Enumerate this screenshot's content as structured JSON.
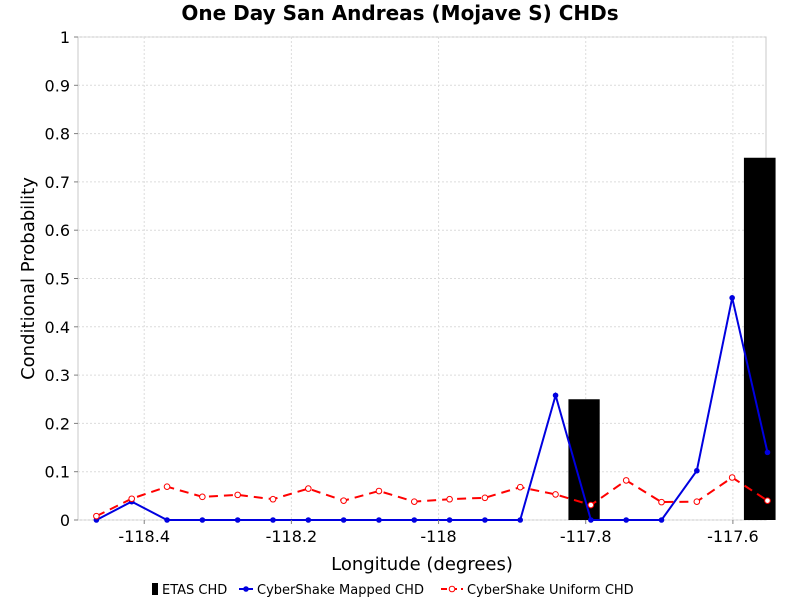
{
  "chart_data": {
    "type": "bar+line",
    "title": "One Day San Andreas (Mojave S) CHDs",
    "xlabel": "Longitude (degrees)",
    "ylabel": "Conditional Probability",
    "xlim": [
      -118.49,
      -117.555
    ],
    "ylim": [
      0,
      1
    ],
    "xticks": [
      -118.4,
      -118.2,
      -118,
      -117.8,
      -117.6
    ],
    "xtick_labels": [
      "-118.4",
      "-118.2",
      "-118",
      "-117.8",
      "-117.6"
    ],
    "yticks": [
      0,
      0.1,
      0.2,
      0.3,
      0.4,
      0.5,
      0.6,
      0.7,
      0.8,
      0.9,
      1
    ],
    "ytick_labels": [
      "0",
      "0.1",
      "0.2",
      "0.3",
      "0.4",
      "0.5",
      "0.6",
      "0.7",
      "0.8",
      "0.9",
      "1"
    ],
    "grid": true,
    "legend_position": "bottom",
    "series": [
      {
        "name": "ETAS CHD",
        "kind": "bar",
        "color": "#000000",
        "bars": [
          {
            "x0": -117.8235,
            "x1": -117.781,
            "value": 0.25
          },
          {
            "x0": -117.585,
            "x1": -117.542,
            "value": 0.75
          }
        ]
      },
      {
        "name": "CyberShake Mapped CHD",
        "kind": "line",
        "color": "#0000e0",
        "style": "solid",
        "marker": "filled-circle",
        "x": [
          -118.465,
          -118.417,
          -118.369,
          -118.321,
          -118.273,
          -118.225,
          -118.177,
          -118.129,
          -118.081,
          -118.033,
          -117.985,
          -117.937,
          -117.889,
          -117.841,
          -117.793,
          -117.745,
          -117.697,
          -117.649,
          -117.601,
          -117.553
        ],
        "y": [
          0.0,
          0.038,
          0.0,
          0.0,
          0.0,
          0.0,
          0.0,
          0.0,
          0.0,
          0.0,
          0.0,
          0.0,
          0.0,
          0.258,
          0.0,
          0.0,
          0.0,
          0.102,
          0.46,
          0.14
        ]
      },
      {
        "name": "CyberShake Uniform CHD",
        "kind": "line",
        "color": "#ff0000",
        "style": "dashed",
        "marker": "open-circle",
        "x": [
          -118.465,
          -118.417,
          -118.369,
          -118.321,
          -118.273,
          -118.225,
          -118.177,
          -118.129,
          -118.081,
          -118.033,
          -117.985,
          -117.937,
          -117.889,
          -117.841,
          -117.793,
          -117.745,
          -117.697,
          -117.649,
          -117.601,
          -117.553
        ],
        "y": [
          0.008,
          0.044,
          0.069,
          0.048,
          0.052,
          0.043,
          0.065,
          0.04,
          0.06,
          0.038,
          0.043,
          0.046,
          0.068,
          0.053,
          0.031,
          0.082,
          0.037,
          0.038,
          0.088,
          0.04
        ]
      }
    ]
  }
}
